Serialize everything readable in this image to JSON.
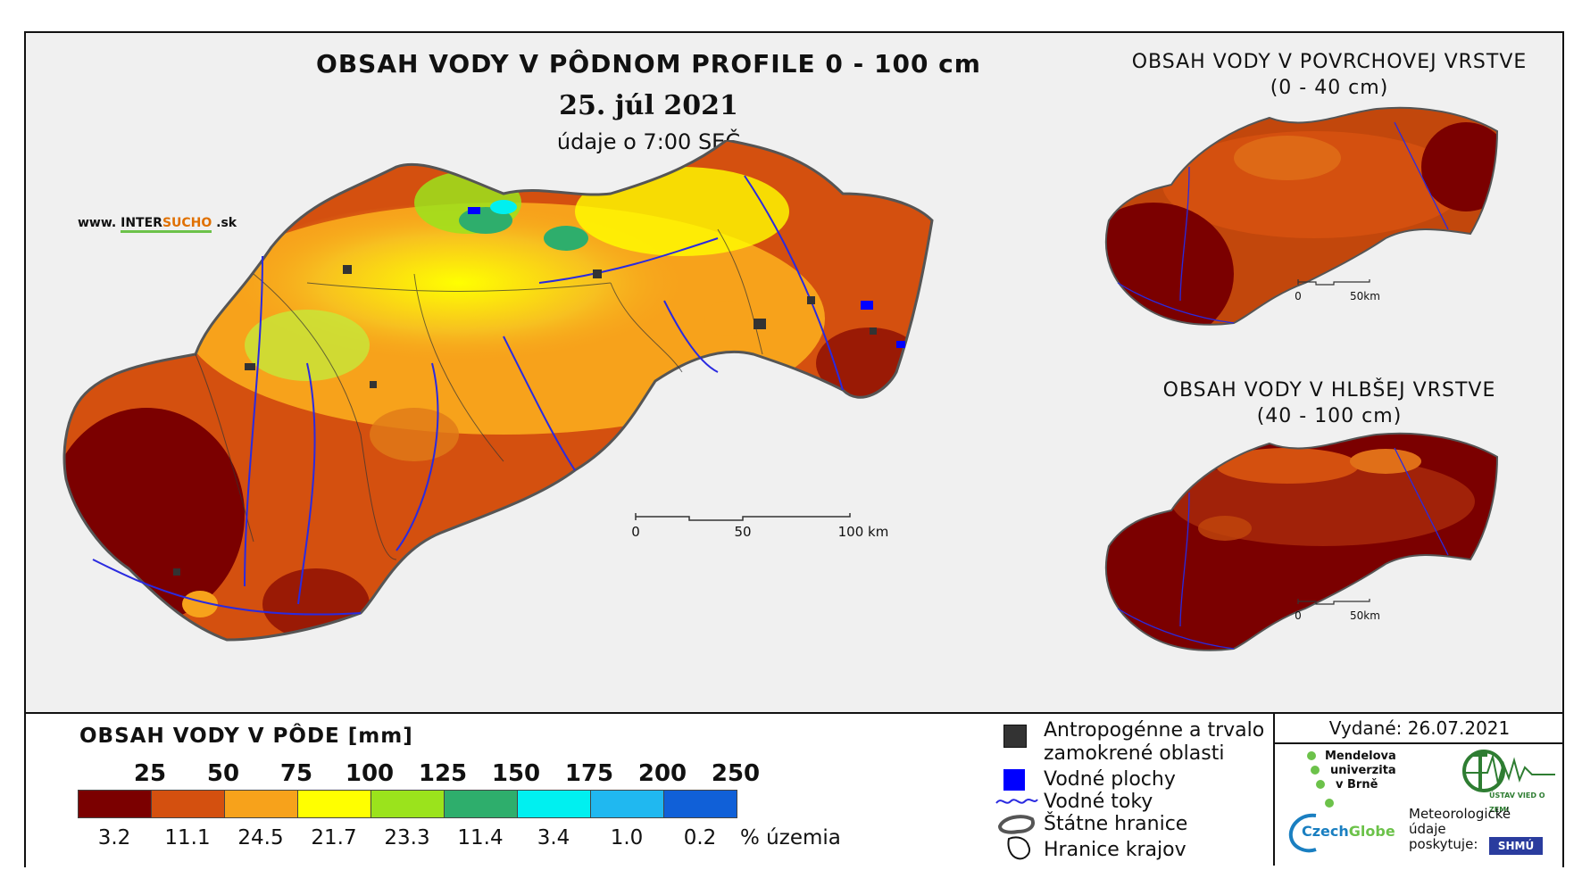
{
  "titles": {
    "main": "OBSAH VODY V PÔDNOM PROFILE 0 - 100 cm",
    "date": "25. júl 2021",
    "time": "údaje o 7:00 SEČ",
    "surface_line1": "OBSAH VODY V POVRCHOVEJ VRSTVE",
    "surface_line2": "(0 - 40 cm)",
    "deep_line1": "OBSAH VODY V HLBŠEJ VRSTVE",
    "deep_line2": "(40 - 100 cm)"
  },
  "watermark": {
    "pre": "www. ",
    "mid_a": "INTER",
    "mid_b": "SUCHO",
    "post": " .sk"
  },
  "scale_main": {
    "l0": "0",
    "l1": "50",
    "l2": "100 km"
  },
  "scale_small": {
    "l0": "0",
    "l1": "50km"
  },
  "legend": {
    "title": "OBSAH VODY V PÔDE [mm]",
    "thresholds": [
      "25",
      "50",
      "75",
      "100",
      "125",
      "150",
      "175",
      "200",
      "250"
    ],
    "colors": [
      "#7b0000",
      "#d4500f",
      "#f7a21b",
      "#ffff00",
      "#9be31c",
      "#2eae6c",
      "#00f0f0",
      "#20b8f0",
      "#1060d8"
    ],
    "percentages": [
      "3.2",
      "11.1",
      "24.5",
      "21.7",
      "23.3",
      "11.4",
      "3.4",
      "1.0",
      "0.2"
    ],
    "unit": "% územia"
  },
  "symbols": {
    "anthropogenic_line1": "Antropogénne a trvalo",
    "anthropogenic_line2": "zamokrené oblasti",
    "water_bodies": "Vodné plochy",
    "rivers": "Vodné toky",
    "state_border": "Štátne hranice",
    "region_border": "Hranice krajov"
  },
  "issued": "Vydané: 26.07.2021",
  "logos": {
    "mendel_1": "Mendelova",
    "mendel_2": "univerzita",
    "mendel_3": "v Brně",
    "czechglobe_a": "Czech",
    "czechglobe_b": "Globe",
    "ustav": "ÚSTAV VIED O ZEMI",
    "meteo_1": "Meteorologické",
    "meteo_2": "údaje",
    "meteo_3": "poskytuje:",
    "shmu": "SHMÚ"
  }
}
